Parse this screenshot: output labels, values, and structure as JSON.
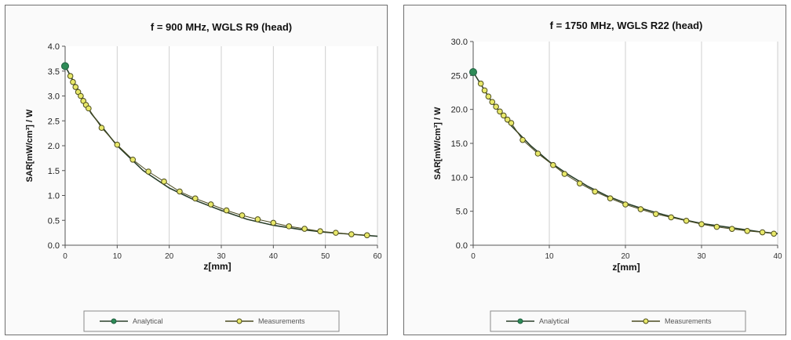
{
  "chart_data": [
    {
      "type": "line",
      "title": "f = 900 MHz, WGLS R9 (head)",
      "xlabel": "z[mm]",
      "ylabel": "SAR[mW/cm³] / W",
      "xlim": [
        0,
        60
      ],
      "ylim": [
        0,
        4
      ],
      "xticks": [
        "0",
        "10",
        "20",
        "30",
        "40",
        "50",
        "60"
      ],
      "yticks": [
        "0.0",
        "0.5",
        "1.0",
        "1.5",
        "2.0",
        "2.5",
        "3.0",
        "3.5",
        "4.0"
      ],
      "grid": "vertical",
      "legend_position": "bottom",
      "series": [
        {
          "name": "Analytical",
          "color": "#2e8b57",
          "marker": "filled-circle",
          "x": [
            0,
            5,
            10,
            15,
            20,
            25,
            30,
            35,
            40,
            45,
            50,
            55,
            60
          ],
          "y": [
            3.6,
            2.65,
            2.0,
            1.5,
            1.15,
            0.9,
            0.7,
            0.52,
            0.4,
            0.32,
            0.26,
            0.22,
            0.18
          ]
        },
        {
          "name": "Measurements",
          "color": "#c7c73a",
          "marker": "open-circle",
          "x": [
            1,
            1.5,
            2,
            2.5,
            3,
            3.5,
            4,
            4.5,
            7,
            10,
            13,
            16,
            19,
            22,
            25,
            28,
            31,
            34,
            37,
            40,
            43,
            46,
            49,
            52,
            55,
            58
          ],
          "y": [
            3.4,
            3.28,
            3.18,
            3.08,
            3.0,
            2.9,
            2.82,
            2.75,
            2.36,
            2.02,
            1.72,
            1.48,
            1.28,
            1.08,
            0.94,
            0.82,
            0.7,
            0.6,
            0.52,
            0.45,
            0.38,
            0.33,
            0.28,
            0.25,
            0.22,
            0.2
          ]
        }
      ]
    },
    {
      "type": "line",
      "title": "f = 1750 MHz, WGLS R22 (head)",
      "xlabel": "z[mm]",
      "ylabel": "SAR[mW/cm³] / W",
      "xlim": [
        0,
        40
      ],
      "ylim": [
        0,
        30
      ],
      "xticks": [
        "0",
        "10",
        "20",
        "30",
        "40"
      ],
      "yticks": [
        "0.0",
        "5.0",
        "10.0",
        "15.0",
        "20.0",
        "25.0",
        "30.0"
      ],
      "grid": "vertical",
      "legend_position": "bottom",
      "series": [
        {
          "name": "Analytical",
          "color": "#2e8b57",
          "marker": "filled-circle",
          "x": [
            0,
            2.5,
            5,
            7.5,
            10,
            12.5,
            15,
            17.5,
            20,
            22.5,
            25,
            27.5,
            30,
            32.5,
            35,
            37.5,
            40
          ],
          "y": [
            25.5,
            21.0,
            17.6,
            14.7,
            12.3,
            10.4,
            8.7,
            7.3,
            6.2,
            5.3,
            4.5,
            3.8,
            3.2,
            2.8,
            2.4,
            2.0,
            1.7
          ]
        },
        {
          "name": "Measurements",
          "color": "#c7c73a",
          "marker": "open-circle",
          "x": [
            1,
            1.5,
            2,
            2.5,
            3,
            3.5,
            4,
            4.5,
            5,
            6.5,
            8.5,
            10.5,
            12,
            14,
            16,
            18,
            20,
            22,
            24,
            26,
            28,
            30,
            32,
            34,
            36,
            38,
            39.5
          ],
          "y": [
            23.8,
            22.8,
            21.9,
            21.1,
            20.4,
            19.7,
            19.1,
            18.5,
            18.0,
            15.5,
            13.5,
            11.8,
            10.5,
            9.1,
            7.9,
            6.9,
            6.0,
            5.3,
            4.6,
            4.1,
            3.6,
            3.1,
            2.7,
            2.4,
            2.1,
            1.9,
            1.7
          ]
        }
      ]
    }
  ]
}
